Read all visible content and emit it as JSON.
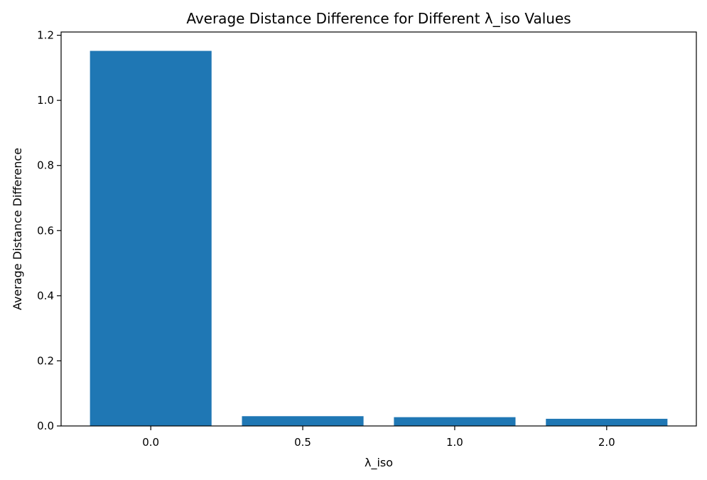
{
  "chart_data": {
    "type": "bar",
    "title": "Average Distance Difference for Different λ_iso Values",
    "xlabel": "λ_iso",
    "ylabel": "Average Distance Difference",
    "categories": [
      "0.0",
      "0.5",
      "1.0",
      "2.0"
    ],
    "values": [
      1.152,
      0.03,
      0.027,
      0.022
    ],
    "ylim": [
      0,
      1.21
    ],
    "yticks": [
      "0.0",
      "0.2",
      "0.4",
      "0.6",
      "0.8",
      "1.0",
      "1.2"
    ],
    "ytick_values": [
      0,
      0.2,
      0.4,
      0.6,
      0.8,
      1.0,
      1.2
    ],
    "bar_color": "#1f77b4",
    "grid": false,
    "legend": "none"
  }
}
